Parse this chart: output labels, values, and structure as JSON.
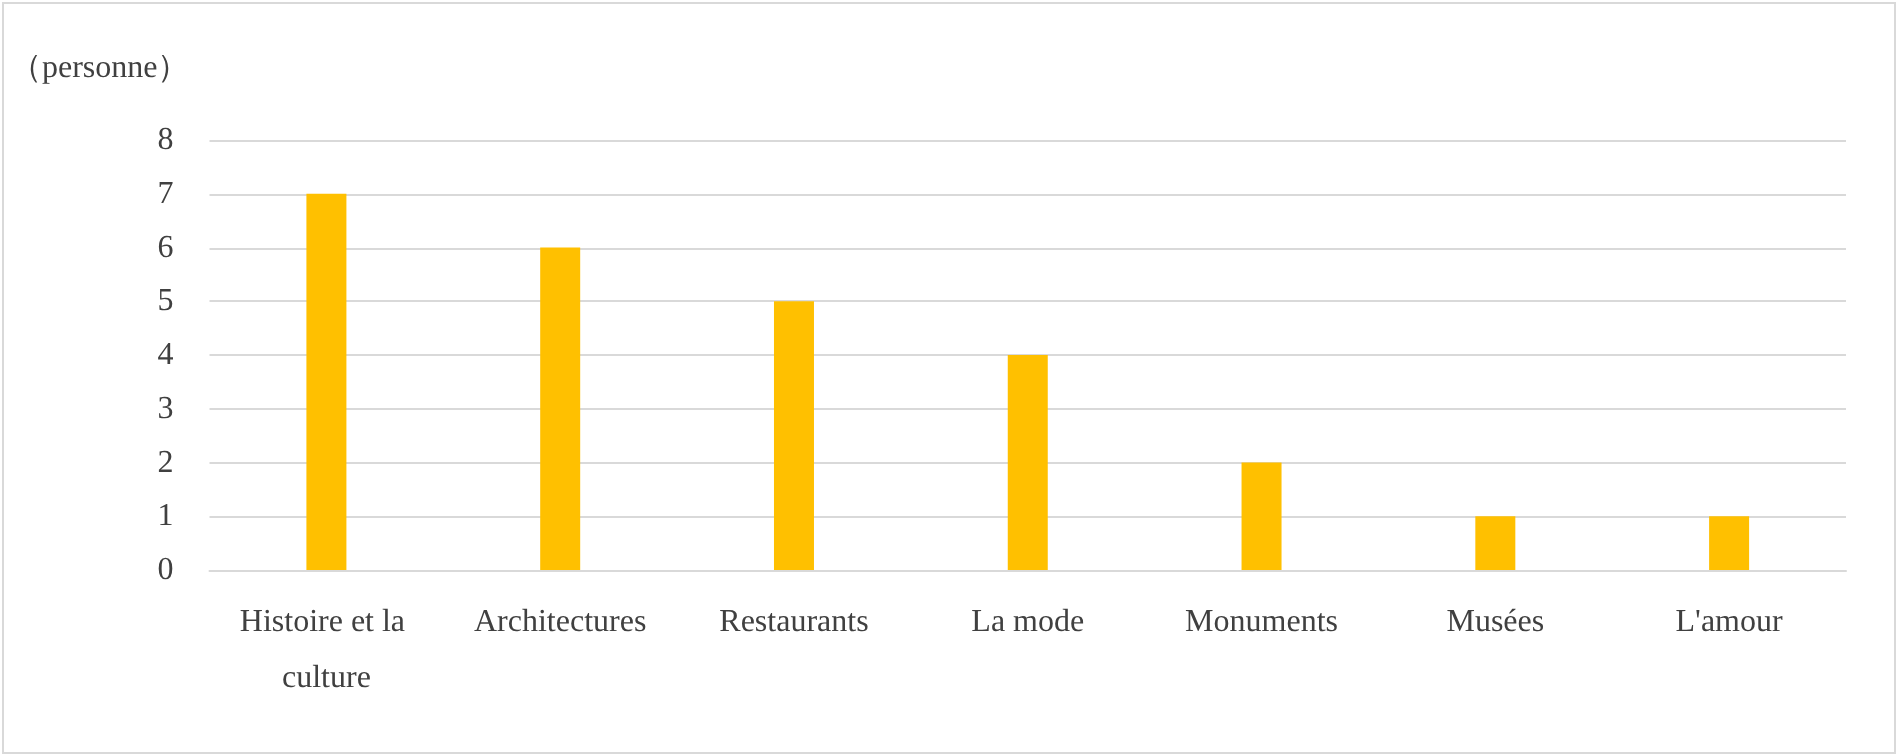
{
  "chart_data": {
    "type": "bar",
    "ylabel": "（personne）",
    "categories": [
      "Histoire et la culture",
      "Architectures",
      "Restaurants",
      "La mode",
      "Monuments",
      "Musées",
      "L'amour"
    ],
    "values": [
      7,
      6,
      5,
      4,
      2,
      1,
      1
    ],
    "color": "#ffc000",
    "ylim": [
      0,
      8
    ],
    "yticks": [
      0,
      1,
      2,
      3,
      4,
      5,
      6,
      7,
      8
    ],
    "grid": "y"
  }
}
